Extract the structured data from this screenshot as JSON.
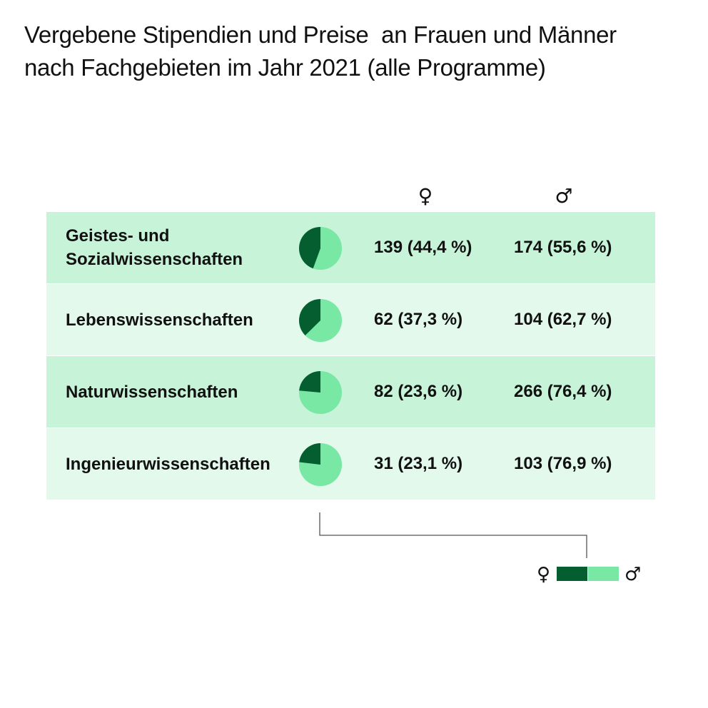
{
  "title_lines": [
    "Vergebene Stipendien und Preise  an Frauen und Männer",
    "nach Fachgebieten im Jahr 2021 (alle Programme)"
  ],
  "header": {
    "female_symbol": "♀",
    "male_symbol": "♂"
  },
  "legend": {
    "female_symbol": "♀",
    "male_symbol": "♂"
  },
  "colors": {
    "female": "#045e2f",
    "male": "#78e8a4",
    "row_dark": "#c7f4d8",
    "row_light": "#e3f9eb"
  },
  "chart_data": {
    "type": "table",
    "title": "Vergebene Stipendien und Preise  an Frauen und Männer nach Fachgebieten im Jahr 2021 (alle Programme)",
    "columns": [
      "♀",
      "♂"
    ],
    "rows": [
      {
        "category": "Geistes- und Sozialwissenschaften",
        "female": 139,
        "female_pct": 44.4,
        "female_label": "139 (44,4 %)",
        "male": 174,
        "male_pct": 55.6,
        "male_label": "174 (55,6 %)"
      },
      {
        "category": "Lebenswissenschaften",
        "female": 62,
        "female_pct": 37.3,
        "female_label": "62 (37,3 %)",
        "male": 104,
        "male_pct": 62.7,
        "male_label": "104 (62,7 %)"
      },
      {
        "category": "Naturwissenschaften",
        "female": 82,
        "female_pct": 23.6,
        "female_label": "82 (23,6 %)",
        "male": 266,
        "male_pct": 76.4,
        "male_label": "266 (76,4 %)"
      },
      {
        "category": "Ingenieurwissenschaften",
        "female": 31,
        "female_pct": 23.1,
        "female_label": "31 (23,1 %)",
        "male": 103,
        "male_pct": 76.9,
        "male_label": "103 (76,9 %)"
      }
    ]
  }
}
